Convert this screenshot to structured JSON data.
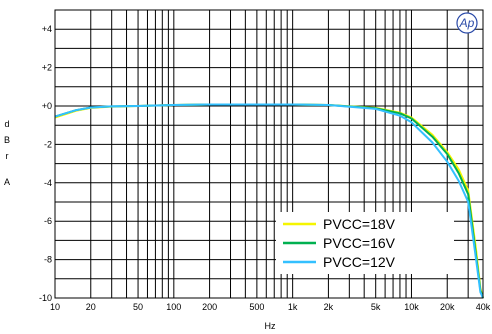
{
  "chart_data": {
    "type": "line",
    "xlabel": "Hz",
    "ylabel": "dBrA",
    "x_scale": "log",
    "xlim": [
      10,
      40000
    ],
    "ylim": [
      -10,
      5
    ],
    "grid": true,
    "legend_placement": "bottom-right",
    "x_ticks": [
      {
        "value": 10,
        "label": "10"
      },
      {
        "value": 20,
        "label": "20"
      },
      {
        "value": 50,
        "label": "50"
      },
      {
        "value": 100,
        "label": "100"
      },
      {
        "value": 200,
        "label": "200"
      },
      {
        "value": 500,
        "label": "500"
      },
      {
        "value": 1000,
        "label": "1k"
      },
      {
        "value": 2000,
        "label": "2k"
      },
      {
        "value": 5000,
        "label": "5k"
      },
      {
        "value": 10000,
        "label": "10k"
      },
      {
        "value": 20000,
        "label": "20k"
      },
      {
        "value": 40000,
        "label": "40k"
      }
    ],
    "y_ticks": [
      {
        "value": 4,
        "label": "+4"
      },
      {
        "value": 2,
        "label": "+2"
      },
      {
        "value": 0,
        "label": "+0"
      },
      {
        "value": -2,
        "label": "-2"
      },
      {
        "value": -4,
        "label": "-4"
      },
      {
        "value": -6,
        "label": "-6"
      },
      {
        "value": -8,
        "label": "-8"
      },
      {
        "value": -10,
        "label": "-10"
      }
    ],
    "series": [
      {
        "name": "PVCC=18V",
        "color": "#f5f500",
        "x": [
          10,
          15,
          20,
          30,
          50,
          100,
          200,
          500,
          1000,
          2000,
          5000,
          8000,
          10000,
          15000,
          20000,
          25000,
          30000,
          35000,
          38000,
          40000
        ],
        "y": [
          -0.6,
          -0.25,
          -0.1,
          -0.03,
          0.0,
          0.05,
          0.08,
          0.08,
          0.08,
          0.05,
          -0.1,
          -0.35,
          -0.6,
          -1.5,
          -2.4,
          -3.3,
          -4.4,
          -7.5,
          -9.5,
          -10
        ]
      },
      {
        "name": "PVCC=16V",
        "color": "#00b050",
        "x": [
          10,
          15,
          20,
          30,
          50,
          100,
          200,
          500,
          1000,
          2000,
          5000,
          8000,
          10000,
          15000,
          20000,
          25000,
          30000,
          35000,
          38000,
          40000
        ],
        "y": [
          -0.55,
          -0.22,
          -0.08,
          -0.02,
          0.0,
          0.05,
          0.08,
          0.08,
          0.08,
          0.05,
          -0.12,
          -0.38,
          -0.65,
          -1.6,
          -2.5,
          -3.5,
          -4.6,
          -7.8,
          -9.6,
          -10
        ]
      },
      {
        "name": "PVCC=12V",
        "color": "#33c0ff",
        "x": [
          10,
          15,
          20,
          30,
          50,
          100,
          200,
          500,
          1000,
          2000,
          5000,
          8000,
          10000,
          15000,
          20000,
          25000,
          30000,
          35000,
          38000,
          40000
        ],
        "y": [
          -0.55,
          -0.22,
          -0.08,
          -0.02,
          0.0,
          0.05,
          0.08,
          0.08,
          0.08,
          0.05,
          -0.15,
          -0.5,
          -0.85,
          -1.9,
          -2.9,
          -3.9,
          -5.0,
          -8.0,
          -9.7,
          -10
        ]
      }
    ]
  },
  "logo": {
    "text": "Ap"
  }
}
